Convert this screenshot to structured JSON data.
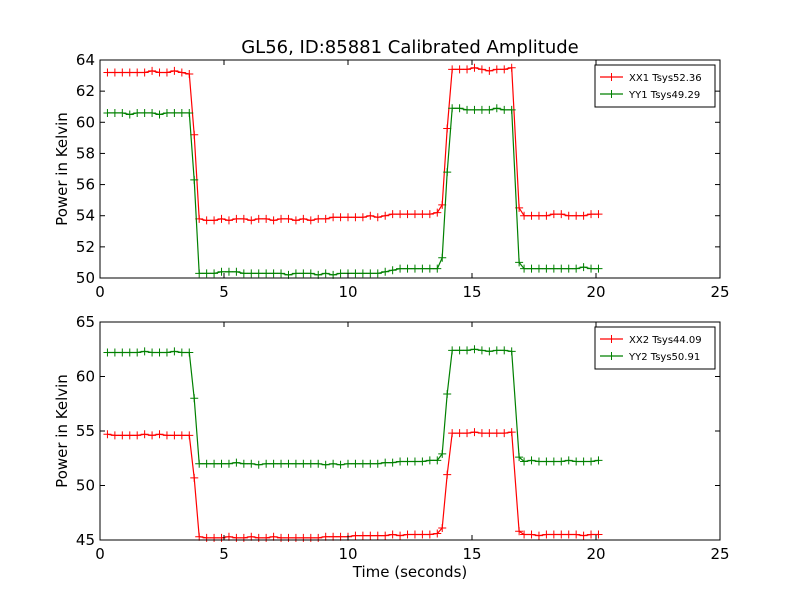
{
  "title": "GL56, ID:85881 Calibrated Amplitude",
  "colors": {
    "red": "#ff0000",
    "green": "#008000"
  },
  "chart_data": [
    {
      "type": "line",
      "title": "GL56, ID:85881 Calibrated Amplitude",
      "xlabel": "",
      "ylabel": "Power in Kelvin",
      "xlim": [
        0,
        25
      ],
      "ylim": [
        50,
        64
      ],
      "xticks": [
        0,
        5,
        10,
        15,
        20,
        25
      ],
      "yticks": [
        50,
        52,
        54,
        56,
        58,
        60,
        62,
        64
      ],
      "legend_position": "top-right",
      "grid": false,
      "x": [
        0.3,
        0.6,
        0.9,
        1.2,
        1.5,
        1.8,
        2.1,
        2.4,
        2.7,
        3.0,
        3.3,
        3.6,
        3.8,
        4.0,
        4.3,
        4.6,
        4.9,
        5.2,
        5.5,
        5.8,
        6.1,
        6.4,
        6.7,
        7.0,
        7.3,
        7.6,
        7.9,
        8.2,
        8.5,
        8.8,
        9.1,
        9.4,
        9.7,
        10.0,
        10.3,
        10.6,
        10.9,
        11.2,
        11.5,
        11.8,
        12.1,
        12.4,
        12.7,
        13.0,
        13.3,
        13.6,
        13.8,
        14.0,
        14.2,
        14.5,
        14.8,
        15.1,
        15.4,
        15.7,
        16.0,
        16.3,
        16.6,
        16.9,
        17.1,
        17.4,
        17.7,
        18.0,
        18.3,
        18.6,
        18.9,
        19.2,
        19.5,
        19.8,
        20.1
      ],
      "series": [
        {
          "name": "XX1 Tsys52.36",
          "color": "#ff0000",
          "values": [
            63.2,
            63.2,
            63.2,
            63.2,
            63.2,
            63.2,
            63.3,
            63.2,
            63.2,
            63.3,
            63.2,
            63.1,
            59.2,
            53.8,
            53.7,
            53.7,
            53.8,
            53.7,
            53.8,
            53.8,
            53.7,
            53.8,
            53.8,
            53.7,
            53.8,
            53.8,
            53.7,
            53.8,
            53.7,
            53.8,
            53.8,
            53.9,
            53.9,
            53.9,
            53.9,
            53.9,
            54.0,
            53.9,
            54.0,
            54.1,
            54.1,
            54.1,
            54.1,
            54.1,
            54.1,
            54.2,
            54.7,
            59.6,
            63.4,
            63.4,
            63.4,
            63.5,
            63.4,
            63.3,
            63.4,
            63.4,
            63.5,
            54.5,
            54.0,
            54.0,
            54.0,
            54.0,
            54.1,
            54.1,
            54.0,
            54.0,
            54.0,
            54.1,
            54.1
          ]
        },
        {
          "name": "YY1 Tsys49.29",
          "color": "#008000",
          "values": [
            60.6,
            60.6,
            60.6,
            60.5,
            60.6,
            60.6,
            60.6,
            60.5,
            60.6,
            60.6,
            60.6,
            60.6,
            56.3,
            50.3,
            50.3,
            50.3,
            50.4,
            50.4,
            50.4,
            50.3,
            50.3,
            50.3,
            50.3,
            50.3,
            50.3,
            50.2,
            50.3,
            50.3,
            50.3,
            50.2,
            50.3,
            50.2,
            50.3,
            50.3,
            50.3,
            50.3,
            50.3,
            50.3,
            50.4,
            50.5,
            50.6,
            50.6,
            50.6,
            50.6,
            50.6,
            50.6,
            51.3,
            56.8,
            60.9,
            60.9,
            60.8,
            60.8,
            60.8,
            60.8,
            60.9,
            60.8,
            60.8,
            51.0,
            50.6,
            50.6,
            50.6,
            50.6,
            50.6,
            50.6,
            50.6,
            50.6,
            50.7,
            50.6,
            50.6
          ]
        }
      ]
    },
    {
      "type": "line",
      "title": "",
      "xlabel": "Time (seconds)",
      "ylabel": "Power in Kelvin",
      "xlim": [
        0,
        25
      ],
      "ylim": [
        45,
        65
      ],
      "xticks": [
        0,
        5,
        10,
        15,
        20,
        25
      ],
      "yticks": [
        45,
        50,
        55,
        60,
        65
      ],
      "legend_position": "top-right",
      "grid": false,
      "x": [
        0.3,
        0.6,
        0.9,
        1.2,
        1.5,
        1.8,
        2.1,
        2.4,
        2.7,
        3.0,
        3.3,
        3.6,
        3.8,
        4.0,
        4.3,
        4.6,
        4.9,
        5.2,
        5.5,
        5.8,
        6.1,
        6.4,
        6.7,
        7.0,
        7.3,
        7.6,
        7.9,
        8.2,
        8.5,
        8.8,
        9.1,
        9.4,
        9.7,
        10.0,
        10.3,
        10.6,
        10.9,
        11.2,
        11.5,
        11.8,
        12.1,
        12.4,
        12.7,
        13.0,
        13.3,
        13.6,
        13.8,
        14.0,
        14.2,
        14.5,
        14.8,
        15.1,
        15.4,
        15.7,
        16.0,
        16.3,
        16.6,
        16.9,
        17.1,
        17.4,
        17.7,
        18.0,
        18.3,
        18.6,
        18.9,
        19.2,
        19.5,
        19.8,
        20.1
      ],
      "series": [
        {
          "name": "XX2 Tsys44.09",
          "color": "#ff0000",
          "values": [
            54.7,
            54.6,
            54.6,
            54.6,
            54.6,
            54.7,
            54.6,
            54.7,
            54.6,
            54.6,
            54.6,
            54.6,
            50.7,
            45.3,
            45.2,
            45.2,
            45.2,
            45.3,
            45.2,
            45.2,
            45.3,
            45.2,
            45.2,
            45.3,
            45.2,
            45.2,
            45.2,
            45.2,
            45.2,
            45.2,
            45.3,
            45.3,
            45.3,
            45.3,
            45.4,
            45.4,
            45.4,
            45.4,
            45.4,
            45.5,
            45.4,
            45.5,
            45.5,
            45.5,
            45.5,
            45.6,
            46.1,
            51.0,
            54.8,
            54.8,
            54.8,
            54.9,
            54.8,
            54.8,
            54.8,
            54.8,
            54.9,
            45.8,
            45.5,
            45.5,
            45.4,
            45.5,
            45.5,
            45.5,
            45.5,
            45.5,
            45.4,
            45.5,
            45.5
          ]
        },
        {
          "name": "YY2 Tsys50.91",
          "color": "#008000",
          "values": [
            62.2,
            62.2,
            62.2,
            62.2,
            62.2,
            62.3,
            62.2,
            62.2,
            62.2,
            62.3,
            62.2,
            62.2,
            58.0,
            52.0,
            52.0,
            52.0,
            52.0,
            52.0,
            52.1,
            52.0,
            52.0,
            51.9,
            52.0,
            52.0,
            52.0,
            52.0,
            52.0,
            52.0,
            52.0,
            52.0,
            51.9,
            52.0,
            51.9,
            52.0,
            52.0,
            52.0,
            52.0,
            52.0,
            52.1,
            52.1,
            52.2,
            52.2,
            52.2,
            52.2,
            52.3,
            52.3,
            52.9,
            58.4,
            62.4,
            62.4,
            62.4,
            62.5,
            62.4,
            62.3,
            62.4,
            62.4,
            62.3,
            52.6,
            52.2,
            52.3,
            52.2,
            52.2,
            52.2,
            52.2,
            52.3,
            52.2,
            52.2,
            52.2,
            52.3
          ]
        }
      ]
    }
  ]
}
